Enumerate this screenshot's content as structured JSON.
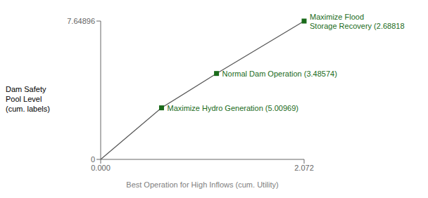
{
  "chart_data": {
    "type": "line",
    "xlabel": "Best Operation for High Inflows (cum. Utility)",
    "ylabel": "Dam Safety\nPool Level\n(cum. labels)",
    "x": [
      0.0,
      0.62,
      1.18,
      2.072
    ],
    "values": [
      0.0,
      2.85,
      4.75,
      7.64896
    ],
    "color": "#555555",
    "marker": "square",
    "annotations": [
      {
        "x": 0.62,
        "y": 2.85,
        "text": "Maximize Hydro Generation (5.00969)",
        "color": "#1a6b1a"
      },
      {
        "x": 1.18,
        "y": 4.75,
        "text": "Normal Dam Operation (3.48574)",
        "color": "#1a6b1a"
      },
      {
        "x": 2.072,
        "y": 7.64896,
        "text": "Maximize Flood\nStorage Recovery (2.68818",
        "color": "#1a6b1a"
      }
    ],
    "xlim": [
      0.0,
      2.072
    ],
    "ylim": [
      0.0,
      7.64896
    ],
    "xticks": [
      {
        "value": 0,
        "label": "0.000"
      },
      2.072
    ],
    "yticks": [
      0,
      7.64896
    ],
    "grid": false
  }
}
